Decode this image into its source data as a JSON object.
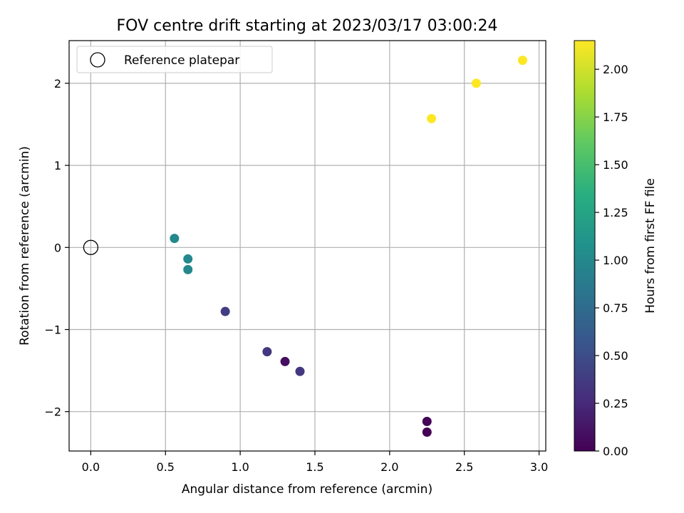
{
  "chart_data": {
    "type": "scatter",
    "title": "FOV centre drift starting at 2023/03/17 03:00:24",
    "xlabel": "Angular distance from reference (arcmin)",
    "ylabel": "Rotation from reference (arcmin)",
    "xlim": [
      -0.145,
      3.045
    ],
    "ylim": [
      -2.48,
      2.52
    ],
    "xticks": [
      0.0,
      0.5,
      1.0,
      1.5,
      2.0,
      2.5,
      3.0
    ],
    "xtick_labels": [
      "0.0",
      "0.5",
      "1.0",
      "1.5",
      "2.0",
      "2.5",
      "3.0"
    ],
    "yticks": [
      -2,
      -1,
      0,
      1,
      2
    ],
    "ytick_labels": [
      "−2",
      "−1",
      "0",
      "1",
      "2"
    ],
    "grid": true,
    "legend": {
      "placement": "top-left",
      "entries": [
        "Reference platepar"
      ]
    },
    "reference_point": {
      "x": 0.0,
      "y": 0.0
    },
    "colorbar": {
      "label": "Hours from first FF file",
      "colormap": "viridis",
      "range": [
        0.0,
        2.15
      ],
      "ticks": [
        0.0,
        0.25,
        0.5,
        0.75,
        1.0,
        1.25,
        1.5,
        1.75,
        2.0
      ],
      "tick_labels": [
        "0.00",
        "0.25",
        "0.50",
        "0.75",
        "1.00",
        "1.25",
        "1.50",
        "1.75",
        "2.00"
      ]
    },
    "points": [
      {
        "x": 2.25,
        "y": -2.25,
        "c": 0.0
      },
      {
        "x": 2.25,
        "y": -2.12,
        "c": 0.02
      },
      {
        "x": 1.3,
        "y": -1.39,
        "c": 0.08
      },
      {
        "x": 1.4,
        "y": -1.51,
        "c": 0.35
      },
      {
        "x": 1.18,
        "y": -1.27,
        "c": 0.35
      },
      {
        "x": 0.9,
        "y": -0.78,
        "c": 0.38
      },
      {
        "x": 0.65,
        "y": -0.27,
        "c": 1.0
      },
      {
        "x": 0.65,
        "y": -0.14,
        "c": 1.0
      },
      {
        "x": 0.56,
        "y": 0.11,
        "c": 1.0
      },
      {
        "x": 2.28,
        "y": 1.57,
        "c": 2.15
      },
      {
        "x": 2.58,
        "y": 2.0,
        "c": 2.15
      },
      {
        "x": 2.89,
        "y": 2.28,
        "c": 2.15
      }
    ]
  }
}
